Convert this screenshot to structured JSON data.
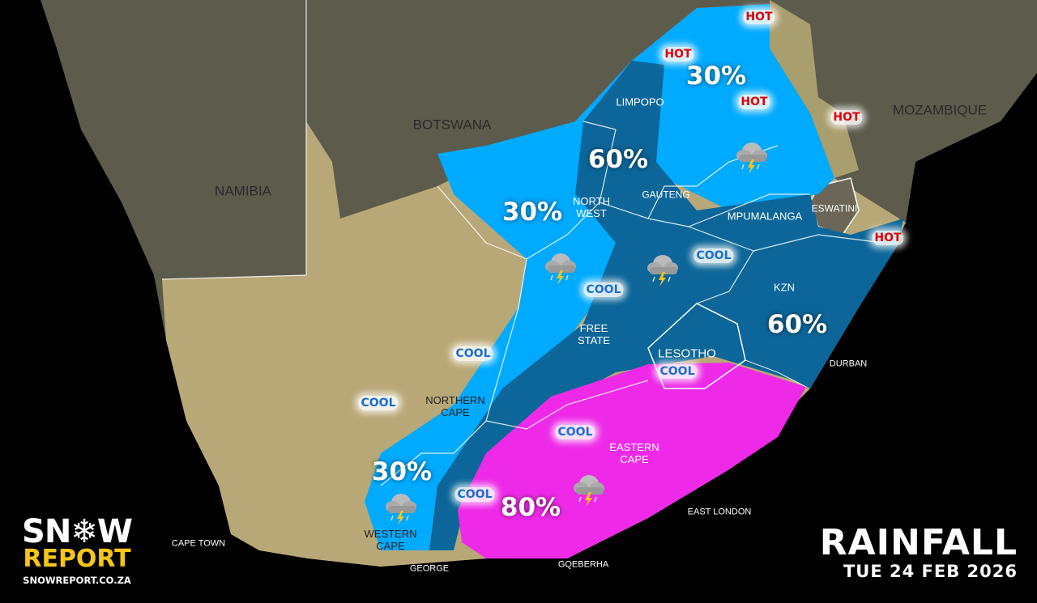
{
  "colors": {
    "sea": "#000000",
    "land_dark": "#5c5b4c",
    "land_tan": "#b9a877",
    "zone_30": "#00aaff",
    "zone_60": "#0c6699",
    "zone_80": "#ee2ae8",
    "border": "#ffffff"
  },
  "title": {
    "main": "RAINFALL",
    "date": "TUE 24 FEB 2026"
  },
  "logo": {
    "word1": "SN",
    "word1_end": "W",
    "word2": "REPORT",
    "url": "SNOWREPORT.CO.ZA"
  },
  "countries": [
    "NAMIBIA",
    "BOTSWANA",
    "MOZAMBIQUE",
    "ESWATINI",
    "LESOTHO"
  ],
  "provinces": [
    "LIMPOPO",
    "NORTH\nWEST",
    "GAUTENG",
    "MPUMALANGA",
    "KZN",
    "FREE\nSTATE",
    "NORTHERN\nCAPE",
    "EASTERN\nCAPE",
    "WESTERN\nCAPE"
  ],
  "cities": [
    "CAPE TOWN",
    "GEORGE",
    "GQEBERHA",
    "EAST LONDON",
    "DURBAN"
  ],
  "rainfall_chances": [
    "30%",
    "60%",
    "30%",
    "60%",
    "30%",
    "80%"
  ],
  "temp_tags": {
    "hot": "HOT",
    "cool": "COOL"
  },
  "icons": [
    "thunderstorm-cloud-icon"
  ]
}
